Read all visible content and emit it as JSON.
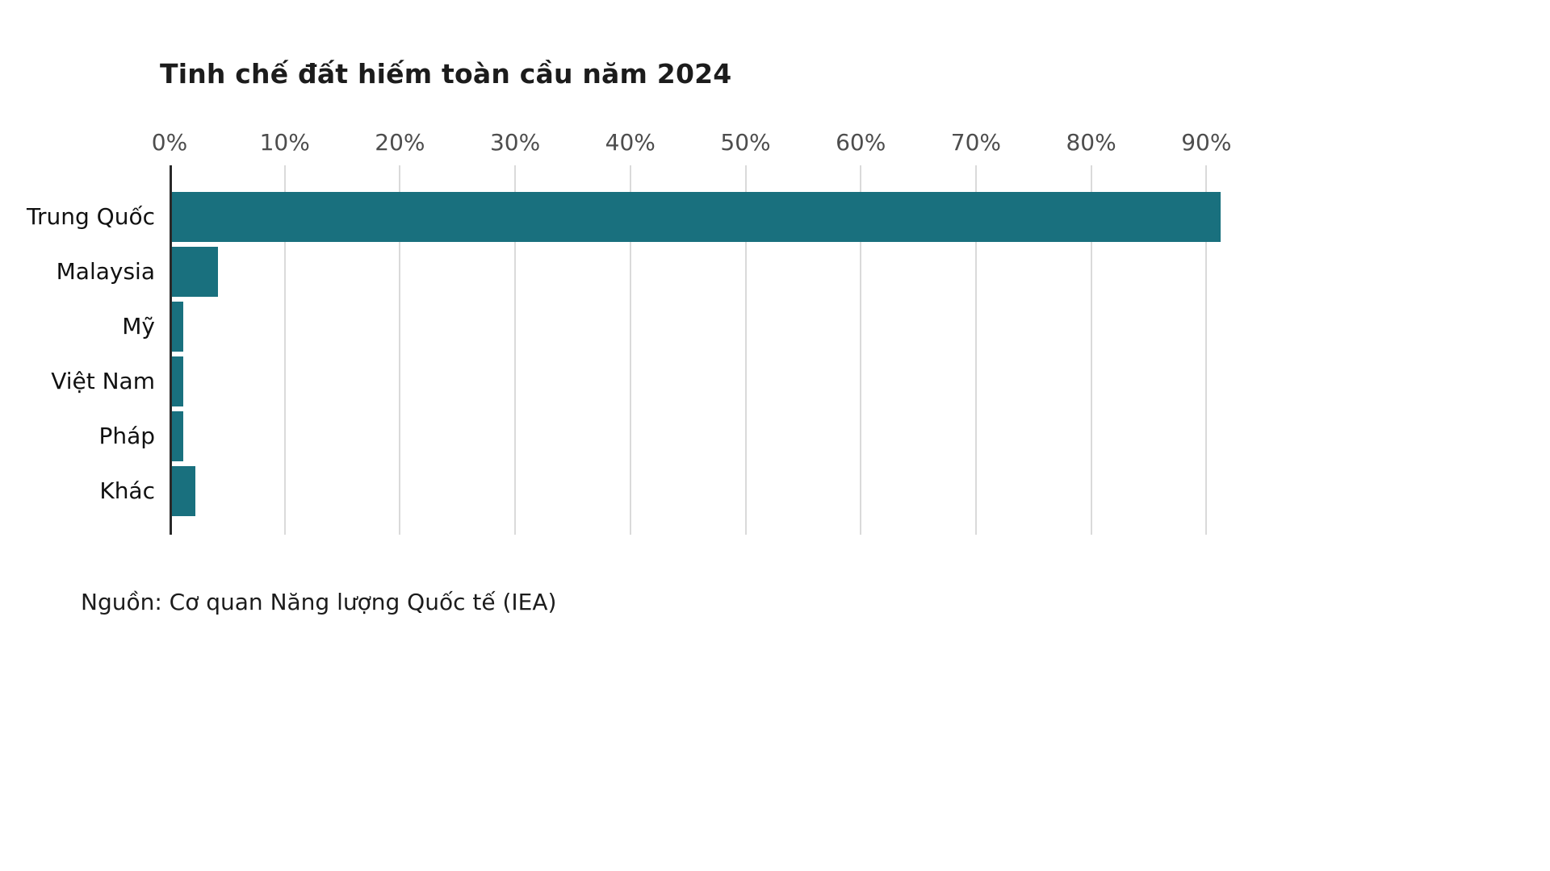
{
  "page": {
    "background_color": "#ffffff"
  },
  "title": "Tinh chế đất hiếm toàn cầu năm 2024",
  "source": "Nguồn: Cơ quan Năng lượng Quốc tế (IEA)",
  "chart_data": {
    "type": "bar",
    "orientation": "horizontal",
    "title": "Tinh chế đất hiếm toàn cầu năm 2024",
    "categories": [
      "Trung Quốc",
      "Malaysia",
      "Mỹ",
      "Việt Nam",
      "Pháp",
      "Khác"
    ],
    "values": [
      91,
      4,
      1,
      1,
      1,
      2
    ],
    "unit": "%",
    "xlabel": "",
    "ylabel": "",
    "xlim": [
      0,
      92.5
    ],
    "x_ticks": [
      0,
      10,
      20,
      30,
      40,
      50,
      60,
      70,
      80,
      90
    ],
    "x_tick_labels": [
      "0%",
      "10%",
      "20%",
      "30%",
      "40%",
      "50%",
      "60%",
      "70%",
      "80%",
      "90%"
    ],
    "grid": true,
    "legend": "none",
    "bar_color": "#19707e",
    "gridline_color": "#dadada",
    "axis_line_color": "#2a2a2a",
    "tick_label_color": "#4d4d4d",
    "source": "Nguồn: Cơ quan Năng lượng Quốc tế (IEA)"
  }
}
